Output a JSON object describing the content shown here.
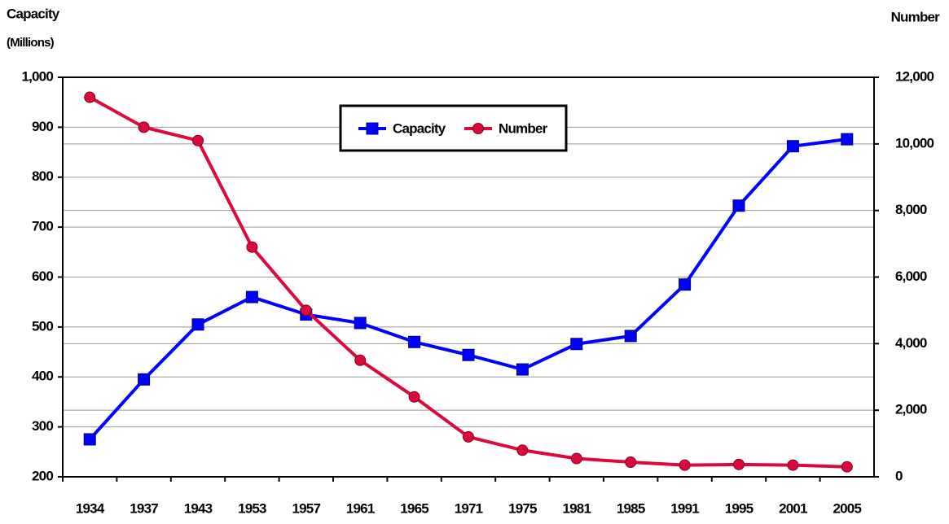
{
  "chart_data": {
    "type": "line",
    "y_label": "Capacity",
    "y_label_sub": "(Millions)",
    "y2_label": "Number",
    "categories": [
      "1934",
      "1937",
      "1943",
      "1953",
      "1957",
      "1961",
      "1965",
      "1971",
      "1975",
      "1981",
      "1985",
      "1991",
      "1995",
      "2001",
      "2005"
    ],
    "series": [
      {
        "name": "Capacity",
        "color": "#0000ff",
        "marker": "square",
        "values": [
          275,
          395,
          505,
          560,
          525,
          508,
          470,
          444,
          415,
          466,
          482,
          585,
          743,
          862,
          876
        ]
      },
      {
        "name": "Number",
        "color": "#dc0a3c",
        "marker": "circle",
        "axis": "y2",
        "values": [
          11400,
          10500,
          10100,
          6900,
          5000,
          3500,
          2400,
          1200,
          800,
          550,
          440,
          350,
          370,
          350,
          300
        ]
      }
    ],
    "ylim": [
      200,
      1000
    ],
    "yticks": [
      200,
      300,
      400,
      500,
      600,
      700,
      800,
      900,
      {
        "value": 1000,
        "label": "1,000"
      }
    ],
    "y2lim": [
      0,
      12000
    ],
    "y2ticks": [
      0,
      {
        "value": 2000,
        "label": "2,000"
      },
      {
        "value": 4000,
        "label": "4,000"
      },
      {
        "value": 6000,
        "label": "6,000"
      },
      {
        "value": 8000,
        "label": "8,000"
      },
      {
        "value": 10000,
        "label": "10,000"
      },
      {
        "value": 12000,
        "label": "12,000"
      }
    ],
    "grid": true,
    "legend": "top"
  }
}
